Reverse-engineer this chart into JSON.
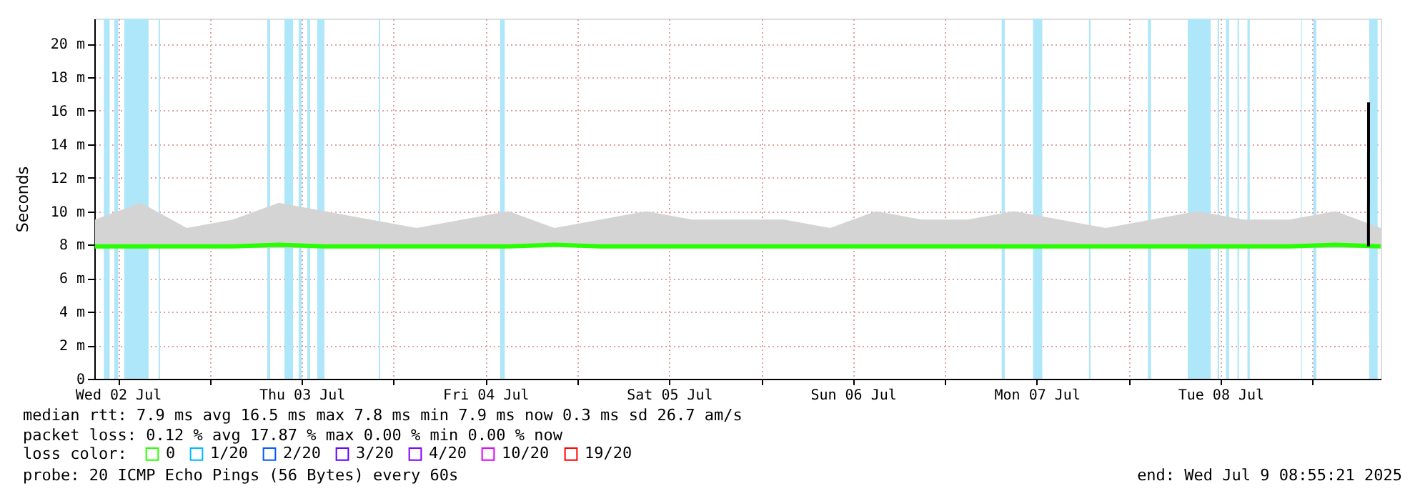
{
  "chart_data": {
    "type": "line",
    "ylabel": "Seconds",
    "legend_title": "loss color:",
    "legend": "bottom",
    "grid": true,
    "xlim": [
      "2025-07-02T08:55",
      "2025-07-09T08:55"
    ],
    "xticks": [
      {
        "value": "2025-07-02T12:00",
        "label": "Wed 02 Jul"
      },
      {
        "value": "2025-07-03T00:00",
        "label": null
      },
      {
        "value": "2025-07-03T12:00",
        "label": "Thu 03 Jul"
      },
      {
        "value": "2025-07-04T00:00",
        "label": null
      },
      {
        "value": "2025-07-04T12:00",
        "label": "Fri 04 Jul"
      },
      {
        "value": "2025-07-05T00:00",
        "label": null
      },
      {
        "value": "2025-07-05T12:00",
        "label": "Sat 05 Jul"
      },
      {
        "value": "2025-07-06T00:00",
        "label": null
      },
      {
        "value": "2025-07-06T12:00",
        "label": "Sun 06 Jul"
      },
      {
        "value": "2025-07-07T00:00",
        "label": null
      },
      {
        "value": "2025-07-07T12:00",
        "label": "Mon 07 Jul"
      },
      {
        "value": "2025-07-08T00:00",
        "label": null
      },
      {
        "value": "2025-07-08T12:00",
        "label": "Tue 08 Jul"
      },
      {
        "value": "2025-07-09T00:00",
        "label": null
      }
    ],
    "ylim": [
      0,
      21.5
    ],
    "yticks": [
      {
        "value": 0,
        "label": "0"
      },
      {
        "value": 2,
        "label": "2 m"
      },
      {
        "value": 4,
        "label": "4 m"
      },
      {
        "value": 6,
        "label": "6 m"
      },
      {
        "value": 8,
        "label": "8 m"
      },
      {
        "value": 10,
        "label": "10 m"
      },
      {
        "value": 12,
        "label": "12 m"
      },
      {
        "value": 14,
        "label": "14 m"
      },
      {
        "value": 16,
        "label": "16 m"
      },
      {
        "value": 18,
        "label": "18 m"
      },
      {
        "value": 20,
        "label": "20 m"
      }
    ],
    "x": [
      "2025-07-02T09:00",
      "2025-07-02T15:00",
      "2025-07-02T21:00",
      "2025-07-03T03:00",
      "2025-07-03T09:00",
      "2025-07-03T15:00",
      "2025-07-03T21:00",
      "2025-07-04T03:00",
      "2025-07-04T09:00",
      "2025-07-04T15:00",
      "2025-07-04T21:00",
      "2025-07-05T03:00",
      "2025-07-05T09:00",
      "2025-07-05T15:00",
      "2025-07-05T21:00",
      "2025-07-06T03:00",
      "2025-07-06T09:00",
      "2025-07-06T15:00",
      "2025-07-06T21:00",
      "2025-07-07T03:00",
      "2025-07-07T09:00",
      "2025-07-07T15:00",
      "2025-07-07T21:00",
      "2025-07-08T03:00",
      "2025-07-08T09:00",
      "2025-07-08T15:00",
      "2025-07-08T21:00",
      "2025-07-09T03:00",
      "2025-07-09T08:55"
    ],
    "series": [
      {
        "name": "0",
        "color": "#26ff00",
        "values": [
          7.9,
          7.9,
          7.9,
          7.9,
          8.0,
          7.9,
          7.9,
          7.9,
          7.9,
          7.9,
          8.0,
          7.9,
          7.9,
          7.9,
          7.9,
          7.9,
          7.9,
          7.9,
          7.9,
          7.9,
          7.9,
          7.9,
          7.9,
          7.9,
          7.9,
          7.9,
          7.9,
          8.0,
          7.9
        ],
        "lower": [
          7.8,
          7.8,
          7.8,
          7.8,
          7.8,
          7.8,
          7.8,
          7.8,
          7.8,
          7.8,
          7.9,
          7.8,
          7.8,
          7.8,
          7.8,
          7.8,
          7.8,
          7.8,
          7.8,
          7.8,
          7.8,
          7.8,
          7.8,
          7.8,
          7.8,
          7.8,
          7.8,
          7.8,
          7.8
        ],
        "upper": [
          9.5,
          10.5,
          9.0,
          9.5,
          10.5,
          10.0,
          9.5,
          9.0,
          9.5,
          10.0,
          9.0,
          9.5,
          10.0,
          9.5,
          9.5,
          9.5,
          9.0,
          10.0,
          9.5,
          9.5,
          10.0,
          9.5,
          9.0,
          9.5,
          10.0,
          9.5,
          9.5,
          10.0,
          9.0
        ]
      },
      {
        "name": "1/20",
        "color": "#00b8ff",
        "values": [
          null,
          null,
          null,
          null,
          null,
          null,
          null,
          null,
          null,
          null,
          null,
          null,
          null,
          null,
          null,
          null,
          null,
          null,
          null,
          null,
          null,
          null,
          null,
          null,
          null,
          null,
          null,
          null,
          null
        ]
      },
      {
        "name": "2/20",
        "color": "#0059ff",
        "values": [
          null,
          null,
          null,
          null,
          null,
          null,
          null,
          null,
          null,
          null,
          null,
          null,
          null,
          null,
          null,
          null,
          null,
          null,
          null,
          null,
          null,
          null,
          null,
          null,
          null,
          null,
          null,
          null,
          null
        ]
      },
      {
        "name": "3/20",
        "color": "#5e00ff",
        "values": [
          null,
          null,
          null,
          null,
          null,
          null,
          null,
          null,
          null,
          null,
          null,
          null,
          null,
          null,
          null,
          null,
          null,
          null,
          null,
          null,
          null,
          null,
          null,
          null,
          null,
          null,
          null,
          null,
          null
        ]
      },
      {
        "name": "4/20",
        "color": "#7e00ff",
        "values": [
          null,
          null,
          null,
          null,
          null,
          null,
          null,
          null,
          null,
          null,
          null,
          null,
          null,
          null,
          null,
          null,
          null,
          null,
          null,
          null,
          null,
          null,
          null,
          null,
          null,
          null,
          null,
          null,
          null
        ]
      },
      {
        "name": "10/20",
        "color": "#dd00ff",
        "values": [
          null,
          null,
          null,
          null,
          null,
          null,
          null,
          null,
          null,
          null,
          null,
          null,
          null,
          null,
          null,
          null,
          null,
          null,
          null,
          null,
          null,
          null,
          null,
          null,
          null,
          null,
          null,
          null,
          null
        ]
      },
      {
        "name": "19/20",
        "color": "#ff0000",
        "values": [
          null,
          null,
          null,
          null,
          null,
          null,
          null,
          null,
          null,
          null,
          null,
          null,
          null,
          null,
          null,
          null,
          null,
          null,
          null,
          null,
          null,
          null,
          null,
          null,
          null,
          null,
          null,
          null,
          null
        ]
      },
      {
        "type": "line",
        "color": "#000000",
        "x": [
          "2025-07-09T07:19",
          "2025-07-09T07:20"
        ],
        "values": [
          7.9,
          16.5
        ]
      }
    ],
    "bands": [
      {
        "axis": "x",
        "from": "2025-07-02T10:10",
        "to": "2025-07-02T10:55",
        "color": "#aee6fa"
      },
      {
        "axis": "x",
        "from": "2025-07-02T11:32",
        "to": "2025-07-02T12:02",
        "color": "#aee6fa"
      },
      {
        "axis": "x",
        "from": "2025-07-02T12:50",
        "to": "2025-07-02T16:00",
        "color": "#aee6fa"
      },
      {
        "axis": "x",
        "from": "2025-07-02T17:19",
        "to": "2025-07-02T17:30",
        "color": "#aee6fa"
      },
      {
        "axis": "x",
        "from": "2025-07-03T07:30",
        "to": "2025-07-03T07:53",
        "color": "#aee6fa"
      },
      {
        "axis": "x",
        "from": "2025-07-03T09:45",
        "to": "2025-07-03T10:52",
        "color": "#aee6fa"
      },
      {
        "axis": "x",
        "from": "2025-07-03T11:36",
        "to": "2025-07-03T11:59",
        "color": "#aee6fa"
      },
      {
        "axis": "x",
        "from": "2025-07-03T12:44",
        "to": "2025-07-03T13:06",
        "color": "#aee6fa"
      },
      {
        "axis": "x",
        "from": "2025-07-03T14:02",
        "to": "2025-07-03T14:58",
        "color": "#aee6fa"
      },
      {
        "axis": "x",
        "from": "2025-07-03T22:04",
        "to": "2025-07-03T22:15",
        "color": "#aee6fa"
      },
      {
        "axis": "x",
        "from": "2025-07-04T13:55",
        "to": "2025-07-04T14:31",
        "color": "#aee6fa"
      },
      {
        "axis": "x",
        "from": "2025-07-07T07:25",
        "to": "2025-07-07T07:49",
        "color": "#aee6fa"
      },
      {
        "axis": "x",
        "from": "2025-07-07T11:31",
        "to": "2025-07-07T12:43",
        "color": "#aee6fa"
      },
      {
        "axis": "x",
        "from": "2025-07-07T18:49",
        "to": "2025-07-07T19:01",
        "color": "#aee6fa"
      },
      {
        "axis": "x",
        "from": "2025-07-08T02:31",
        "to": "2025-07-08T02:55",
        "color": "#aee6fa"
      },
      {
        "axis": "x",
        "from": "2025-07-08T07:43",
        "to": "2025-07-08T10:43",
        "color": "#aee6fa"
      },
      {
        "axis": "x",
        "from": "2025-07-08T11:37",
        "to": "2025-07-08T11:49",
        "color": "#aee6fa"
      },
      {
        "axis": "x",
        "from": "2025-07-08T12:43",
        "to": "2025-07-08T13:07",
        "color": "#aee6fa"
      },
      {
        "axis": "x",
        "from": "2025-07-08T14:13",
        "to": "2025-07-08T14:25",
        "color": "#aee6fa"
      },
      {
        "axis": "x",
        "from": "2025-07-08T15:31",
        "to": "2025-07-08T15:49",
        "color": "#aee6fa"
      },
      {
        "axis": "x",
        "from": "2025-07-08T22:31",
        "to": "2025-07-08T22:37",
        "color": "#aee6fa"
      },
      {
        "axis": "x",
        "from": "2025-07-09T00:07",
        "to": "2025-07-09T00:31",
        "color": "#aee6fa"
      },
      {
        "axis": "x",
        "from": "2025-07-09T07:25",
        "to": "2025-07-09T08:31",
        "color": "#aee6fa"
      }
    ],
    "annotations": [
      "median rtt:  7.9 ms avg  16.5 ms max  7.8 ms min  7.9 ms now  0.3 ms sd  26.7   am/s",
      "packet loss: 0.12 % avg  17.87 % max  0.00 % min  0.00 % now",
      "probe:       20 ICMP Echo Pings (56 Bytes) every 60s",
      "end: Wed Jul  9 08:55:21 2025"
    ]
  }
}
